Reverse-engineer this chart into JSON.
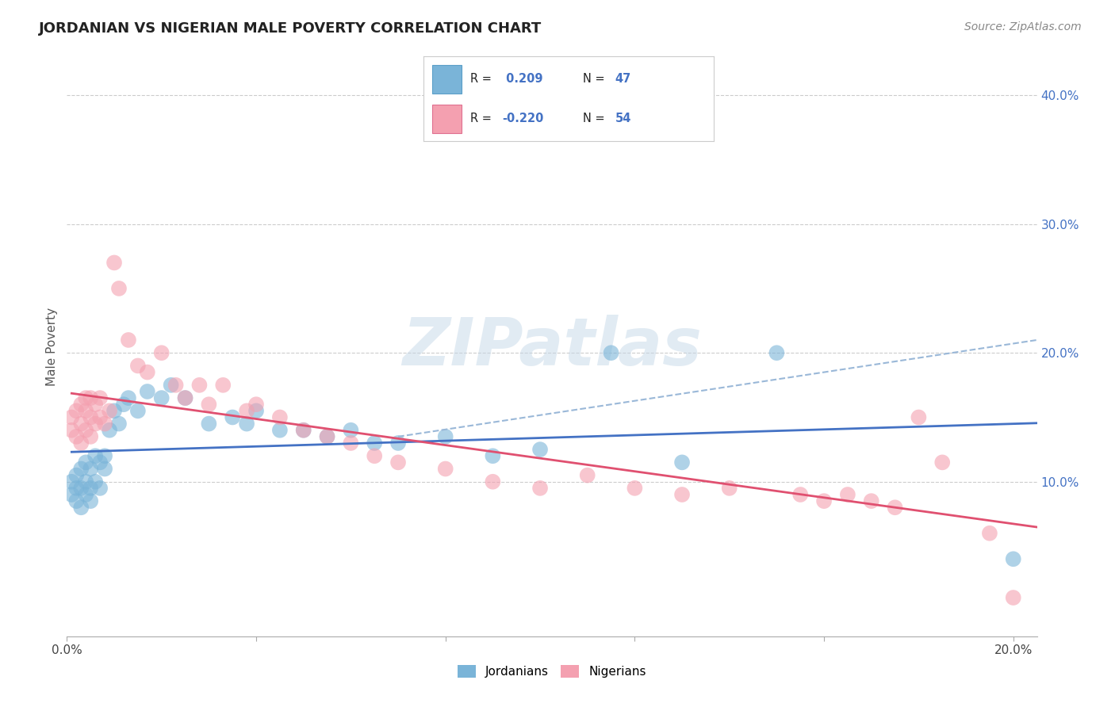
{
  "title": "JORDANIAN VS NIGERIAN MALE POVERTY CORRELATION CHART",
  "source_text": "Source: ZipAtlas.com",
  "ylabel": "Male Poverty",
  "xlim": [
    0.0,
    0.205
  ],
  "ylim": [
    -0.02,
    0.43
  ],
  "blue_scatter_color": "#7ab4d8",
  "blue_scatter_edge": "#5a9fc8",
  "pink_scatter_color": "#f4a0b0",
  "pink_scatter_edge": "#e07090",
  "trend_blue_color": "#4472c4",
  "trend_pink_color": "#e05070",
  "trend_dashed_color": "#9ab8d8",
  "watermark": "ZIPatlas",
  "watermark_color": "#c5d8e8",
  "legend_label_jordan": "Jordanians",
  "legend_label_nigeria": "Nigerians",
  "R_jordan": 0.209,
  "N_jordan": 47,
  "R_nigeria": -0.22,
  "N_nigeria": 54,
  "jordan_x": [
    0.001,
    0.001,
    0.002,
    0.002,
    0.002,
    0.003,
    0.003,
    0.003,
    0.004,
    0.004,
    0.004,
    0.005,
    0.005,
    0.005,
    0.006,
    0.006,
    0.007,
    0.007,
    0.008,
    0.008,
    0.009,
    0.01,
    0.011,
    0.012,
    0.013,
    0.015,
    0.017,
    0.02,
    0.022,
    0.025,
    0.03,
    0.035,
    0.038,
    0.04,
    0.045,
    0.05,
    0.055,
    0.06,
    0.065,
    0.07,
    0.08,
    0.09,
    0.1,
    0.115,
    0.13,
    0.15,
    0.2
  ],
  "jordan_y": [
    0.1,
    0.09,
    0.085,
    0.095,
    0.105,
    0.08,
    0.095,
    0.11,
    0.09,
    0.1,
    0.115,
    0.085,
    0.095,
    0.11,
    0.1,
    0.12,
    0.115,
    0.095,
    0.12,
    0.11,
    0.14,
    0.155,
    0.145,
    0.16,
    0.165,
    0.155,
    0.17,
    0.165,
    0.175,
    0.165,
    0.145,
    0.15,
    0.145,
    0.155,
    0.14,
    0.14,
    0.135,
    0.14,
    0.13,
    0.13,
    0.135,
    0.12,
    0.125,
    0.2,
    0.115,
    0.2,
    0.04
  ],
  "nigeria_x": [
    0.001,
    0.001,
    0.002,
    0.002,
    0.003,
    0.003,
    0.003,
    0.004,
    0.004,
    0.004,
    0.005,
    0.005,
    0.005,
    0.006,
    0.006,
    0.007,
    0.007,
    0.008,
    0.009,
    0.01,
    0.011,
    0.013,
    0.015,
    0.017,
    0.02,
    0.023,
    0.025,
    0.028,
    0.03,
    0.033,
    0.038,
    0.04,
    0.045,
    0.05,
    0.055,
    0.06,
    0.065,
    0.07,
    0.08,
    0.09,
    0.1,
    0.11,
    0.12,
    0.13,
    0.14,
    0.155,
    0.16,
    0.165,
    0.17,
    0.175,
    0.18,
    0.185,
    0.195,
    0.2
  ],
  "nigeria_y": [
    0.14,
    0.15,
    0.135,
    0.155,
    0.13,
    0.145,
    0.16,
    0.14,
    0.155,
    0.165,
    0.135,
    0.15,
    0.165,
    0.145,
    0.16,
    0.15,
    0.165,
    0.145,
    0.155,
    0.27,
    0.25,
    0.21,
    0.19,
    0.185,
    0.2,
    0.175,
    0.165,
    0.175,
    0.16,
    0.175,
    0.155,
    0.16,
    0.15,
    0.14,
    0.135,
    0.13,
    0.12,
    0.115,
    0.11,
    0.1,
    0.095,
    0.105,
    0.095,
    0.09,
    0.095,
    0.09,
    0.085,
    0.09,
    0.085,
    0.08,
    0.15,
    0.115,
    0.06,
    0.01
  ]
}
